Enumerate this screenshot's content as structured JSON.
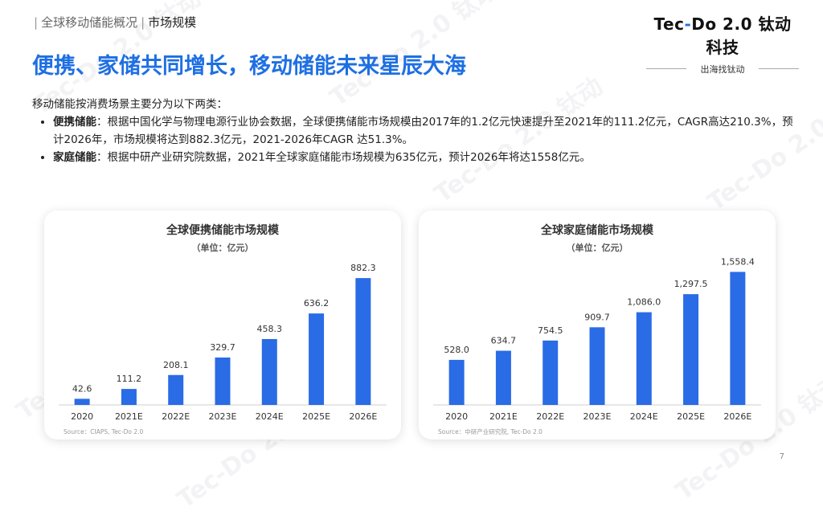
{
  "header": {
    "section": "全球移动储能概况",
    "subsection": "市场规模",
    "brand": "Tec-Do 2.0 钛动科技",
    "brand_parts": {
      "a": "Tec",
      "b": "-",
      "c": "Do 2.0 钛动科技"
    },
    "tagline": "出海找钛动"
  },
  "headline": "便携、家储共同增长，移动储能未来星辰大海",
  "intro": {
    "lead": "移动储能按消费场景主要分为以下两类：",
    "bullets": [
      {
        "term": "便携储能",
        "text": "：根据中国化学与物理电源行业协会数据，全球便携储能市场规模由2017年的1.2亿元快速提升至2021年的111.2亿元，CAGR高达210.3%，预计2026年，市场规模将达到882.3亿元，2021-2026年CAGR 达51.3%。"
      },
      {
        "term": "家庭储能",
        "text": "：根据中研产业研究院数据，2021年全球家庭储能市场规模为635亿元，预计2026年将达1558亿元。"
      }
    ]
  },
  "watermark_text": "Tec-Do 2.0 钛动",
  "chart_data": [
    {
      "type": "bar",
      "title": "全球便携储能市场规模",
      "subtitle": "（单位：亿元）",
      "categories": [
        "2020",
        "2021E",
        "2022E",
        "2023E",
        "2024E",
        "2025E",
        "2026E"
      ],
      "values": [
        42.6,
        111.2,
        208.1,
        329.7,
        458.3,
        636.2,
        882.3
      ],
      "labels": [
        "42.6",
        "111.2",
        "208.1",
        "329.7",
        "458.3",
        "636.2",
        "882.3"
      ],
      "ylim": [
        0,
        950
      ],
      "source": "Source：CIAPS, Tec-Do 2.0",
      "color": "#2a6be6"
    },
    {
      "type": "bar",
      "title": "全球家庭储能市场规模",
      "subtitle": "（单位：亿元）",
      "categories": [
        "2020",
        "2021E",
        "2022E",
        "2023E",
        "2024E",
        "2025E",
        "2026E"
      ],
      "values": [
        528.0,
        634.7,
        754.5,
        909.7,
        1086.0,
        1297.5,
        1558.4
      ],
      "labels": [
        "528.0",
        "634.7",
        "754.5",
        "909.7",
        "1,086.0",
        "1,297.5",
        "1,558.4"
      ],
      "ylim": [
        0,
        1600
      ],
      "source": "Source：中研产业研究院, Tec-Do 2.0",
      "color": "#2a6be6"
    }
  ],
  "page_number": "7",
  "colors": {
    "accent": "#1e6fe3",
    "bar": "#2a6be6"
  }
}
